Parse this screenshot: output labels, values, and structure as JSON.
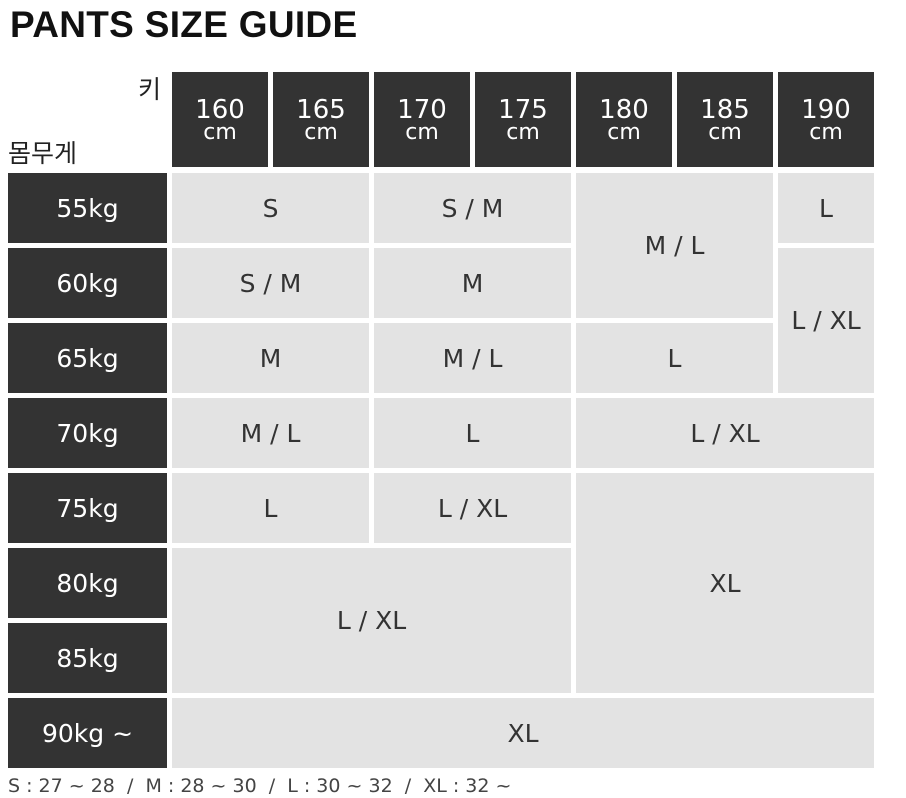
{
  "header": {
    "title": "PANTS SIZE GUIDE"
  },
  "table": {
    "corner": {
      "height": "키",
      "weight": "몸무게"
    },
    "columns": [
      {
        "value": "160",
        "unit": "cm"
      },
      {
        "value": "165",
        "unit": "cm"
      },
      {
        "value": "170",
        "unit": "cm"
      },
      {
        "value": "175",
        "unit": "cm"
      },
      {
        "value": "180",
        "unit": "cm"
      },
      {
        "value": "185",
        "unit": "cm"
      },
      {
        "value": "190",
        "unit": "cm"
      }
    ],
    "rows": [
      "55kg",
      "60kg",
      "65kg",
      "70kg",
      "75kg",
      "80kg",
      "85kg",
      "90kg ~"
    ],
    "cells": [
      "S",
      "S / M",
      "M / L",
      "L",
      "S / M",
      "M",
      "L / XL",
      "M",
      "M / L",
      "L",
      "M / L",
      "L",
      "L / XL",
      "L",
      "L / XL",
      "XL",
      "L / XL",
      "XL"
    ]
  },
  "footer": {
    "note": "S : 27 ~ 28  /  M : 28 ~ 30  /  L : 30 ~ 32  /  XL : 32 ~"
  }
}
